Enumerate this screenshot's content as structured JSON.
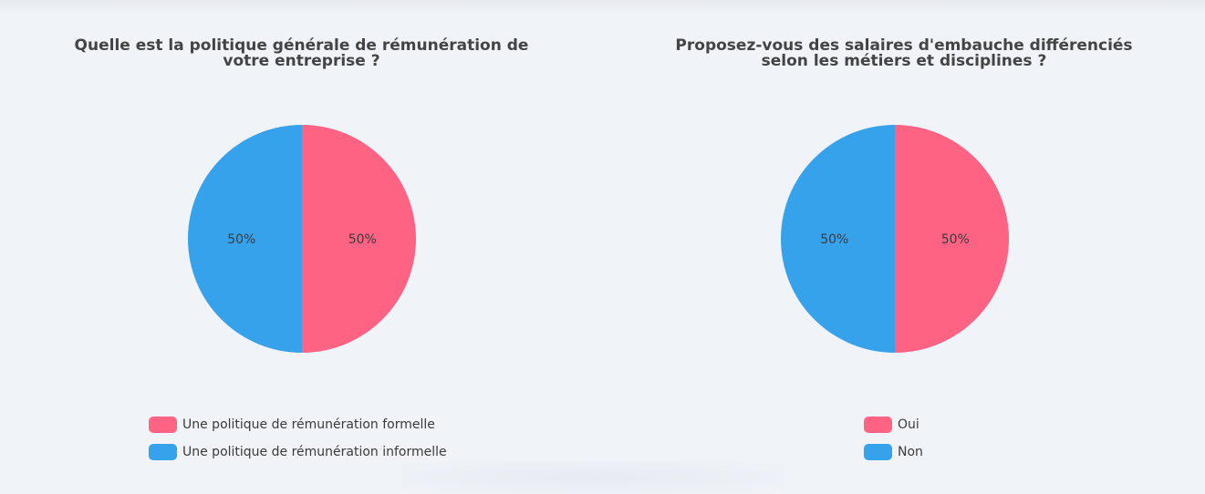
{
  "chart_data": [
    {
      "type": "pie",
      "title": "Quelle est la politique générale de rémunération de votre entreprise ?",
      "categories": [
        "Une politique de rémunération formelle",
        "Une politique de rémunération informelle"
      ],
      "values": [
        50,
        50
      ],
      "value_labels": [
        "50%",
        "50%"
      ],
      "colors": [
        "#ff6384",
        "#36a2eb"
      ],
      "legend_position": "bottom"
    },
    {
      "type": "pie",
      "title": "Proposez-vous des salaires d'embauche différenciés selon les métiers et disciplines ?",
      "categories": [
        "Oui",
        "Non"
      ],
      "values": [
        50,
        50
      ],
      "value_labels": [
        "50%",
        "50%"
      ],
      "colors": [
        "#ff6384",
        "#36a2eb"
      ],
      "legend_position": "bottom"
    }
  ]
}
